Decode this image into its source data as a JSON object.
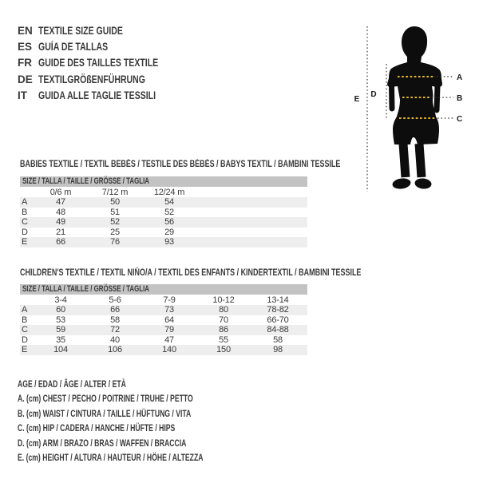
{
  "page": {
    "background": "#ffffff",
    "text_color": "#3a3a3a",
    "header_bar_color": "#c3c3c3",
    "stripe_color": "#eeeeee",
    "accent_color": "#e2b71e",
    "silhouette_color": "#0d0d0d"
  },
  "language_guide": {
    "items": [
      {
        "code": "EN",
        "label": "TEXTILE SIZE GUIDE"
      },
      {
        "code": "ES",
        "label": "GUÍA DE TALLAS"
      },
      {
        "code": "FR",
        "label": "GUIDE DES TAILLES TEXTILE"
      },
      {
        "code": "DE",
        "label": "TEXTILGRÖßENFÜHRUNG"
      },
      {
        "code": "IT",
        "label": "GUIDA ALLE TAGLIE TESSILI"
      }
    ]
  },
  "diagram": {
    "measure_labels": {
      "a": "A",
      "b": "B",
      "c": "C",
      "d": "D",
      "e": "E"
    }
  },
  "babies_table": {
    "title": "BABIES TEXTILE / TEXTIL BEBÉS / TESTILE DES BÉBÉS / BABYS TEXTIL / BAMBINI TESSILE",
    "size_header": "SIZE / TALLA / TAILLE / GRÖSSE / TAGLIA",
    "columns": [
      "0/6 m",
      "7/12 m",
      "12/24 m"
    ],
    "rows": [
      {
        "label": "A",
        "values": [
          "47",
          "50",
          "54"
        ]
      },
      {
        "label": "B",
        "values": [
          "48",
          "51",
          "52"
        ]
      },
      {
        "label": "C",
        "values": [
          "49",
          "52",
          "56"
        ]
      },
      {
        "label": "D",
        "values": [
          "21",
          "25",
          "29"
        ]
      },
      {
        "label": "E",
        "values": [
          "66",
          "76",
          "93"
        ]
      }
    ]
  },
  "children_table": {
    "title": "CHILDREN'S TEXTILE / TEXTIL NIÑO/A / TEXTIL DES ENFANTS / KINDERTEXTIL / BAMBINI TESSILE",
    "size_header": "SIZE / TALLA / TAILLE / GRÖSSE / TAGLIA",
    "columns": [
      "3-4",
      "5-6",
      "7-9",
      "10-12",
      "13-14"
    ],
    "rows": [
      {
        "label": "A",
        "values": [
          "60",
          "66",
          "73",
          "80",
          "78-82"
        ]
      },
      {
        "label": "B",
        "values": [
          "53",
          "58",
          "64",
          "70",
          "66-70"
        ]
      },
      {
        "label": "C",
        "values": [
          "59",
          "72",
          "79",
          "86",
          "84-88"
        ]
      },
      {
        "label": "D",
        "values": [
          "35",
          "40",
          "47",
          "55",
          "58"
        ]
      },
      {
        "label": "E",
        "values": [
          "104",
          "106",
          "140",
          "150",
          "98"
        ]
      }
    ]
  },
  "legend": {
    "age_line": "AGE / EDAD / ÂGE / ALTER / ETÀ",
    "lines": [
      "A. (cm) CHEST / PECHO / POITRINE / TRUHE / PETTO",
      "B. (cm) WAIST / CINTURA / TAILLE / HÜFTUNG / VITA",
      "C. (cm) HIP / CADERA / HANCHE / HÜFTE / HIPS",
      "D. (cm) ARM / BRAZO / BRAS / WAFFEN / BRACCIA",
      "E. (cm) HEIGHT / ALTURA / HAUTEUR / HÖHE / ALTEZZA"
    ]
  }
}
